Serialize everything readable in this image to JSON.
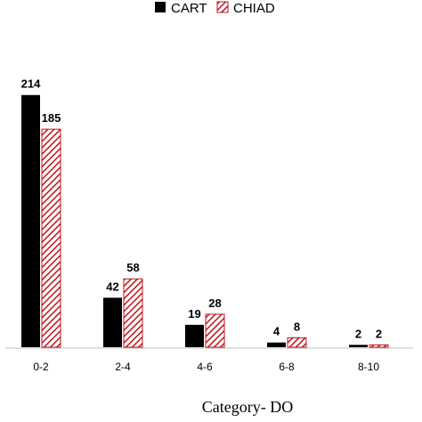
{
  "chart_data": {
    "type": "bar",
    "categories": [
      "0-2",
      "2-4",
      "4-6",
      "6-8",
      "8-10"
    ],
    "series": [
      {
        "name": "CART",
        "values": [
          214,
          42,
          19,
          4,
          2
        ],
        "color": "#000000",
        "pattern": "solid"
      },
      {
        "name": "CHIAD",
        "values": [
          185,
          58,
          28,
          8,
          2
        ],
        "color": "#c0141c",
        "pattern": "hatched"
      }
    ],
    "title": "",
    "xlabel": "Category- DO",
    "ylabel": "",
    "ylim": [
      0,
      240
    ],
    "grid": false,
    "legend_position": "top-center"
  }
}
